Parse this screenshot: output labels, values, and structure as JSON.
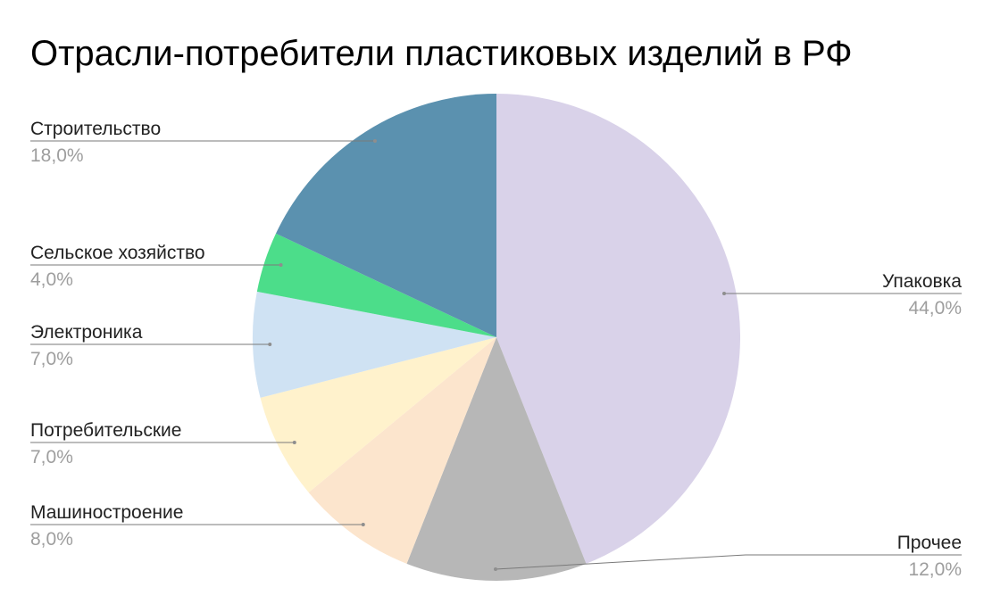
{
  "chart_data": {
    "type": "pie",
    "title": "Отрасли-потребители пластиковых изделий в РФ",
    "start": "top, clockwise",
    "slices": [
      {
        "label": "Упаковка",
        "value": 44,
        "value_label": "44,0%",
        "color": "#d9d2e9"
      },
      {
        "label": "Прочее",
        "value": 12,
        "value_label": "12,0%",
        "color": "#b7b7b7"
      },
      {
        "label": "Машиностроение",
        "value": 8,
        "value_label": "8,0%",
        "color": "#fce5cd"
      },
      {
        "label": "Потребительские",
        "value": 7,
        "value_label": "7,0%",
        "color": "#fff2cc"
      },
      {
        "label": "Электроника",
        "value": 7,
        "value_label": "7,0%",
        "color": "#cfe2f3"
      },
      {
        "label": "Сельское хозяйство",
        "value": 4,
        "value_label": "4,0%",
        "color": "#4cdd8a"
      },
      {
        "label": "Строительство",
        "value": 18,
        "value_label": "18,0%",
        "color": "#5b91af"
      }
    ]
  }
}
